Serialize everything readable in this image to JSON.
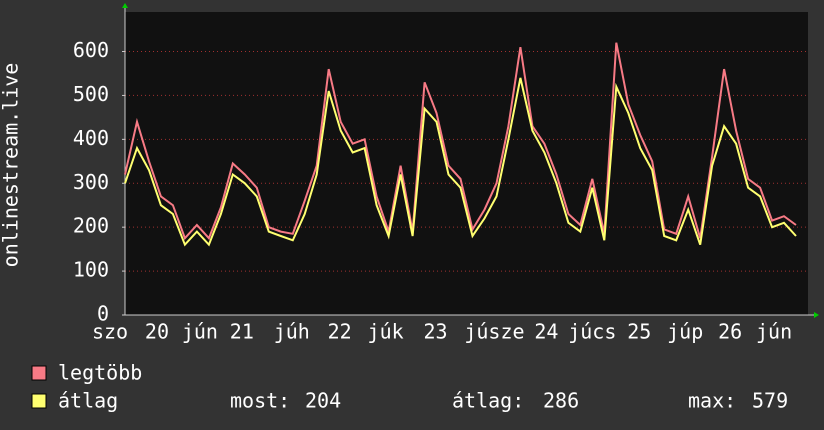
{
  "chart_data": {
    "type": "line",
    "y_label": "onlinestream.live",
    "x": [
      0,
      3,
      6,
      9,
      12,
      15,
      18,
      21,
      24,
      27,
      30,
      33,
      36,
      39,
      42,
      45,
      48,
      51,
      54,
      57,
      60,
      63,
      66,
      69,
      72,
      75,
      78,
      81,
      84,
      87,
      90,
      93,
      96,
      99,
      102,
      105,
      108,
      111,
      114,
      117,
      120,
      123,
      126,
      129,
      132,
      135,
      138,
      141,
      144,
      147,
      150,
      153,
      156,
      159,
      162,
      165,
      168
    ],
    "xlim": [
      0,
      171
    ],
    "xticks": [
      {
        "value": -3.75,
        "label": "szo"
      },
      {
        "value": 8,
        "label": "20"
      },
      {
        "value": 18.75,
        "label": "jún"
      },
      {
        "value": 29.25,
        "label": "21"
      },
      {
        "value": 41.75,
        "label": "júh"
      },
      {
        "value": 53.75,
        "label": "22"
      },
      {
        "value": 65.25,
        "label": "júk"
      },
      {
        "value": 77.75,
        "label": "23"
      },
      {
        "value": 92.5,
        "label": "júsze"
      },
      {
        "value": 105.5,
        "label": "24"
      },
      {
        "value": 117,
        "label": "júcs"
      },
      {
        "value": 128.75,
        "label": "25"
      },
      {
        "value": 140.25,
        "label": "júp"
      },
      {
        "value": 151.5,
        "label": "26"
      },
      {
        "value": 162.5,
        "label": "jún"
      }
    ],
    "ylim": [
      0,
      690
    ],
    "yticks": [
      0,
      100,
      200,
      300,
      400,
      500,
      600
    ],
    "grid": true,
    "series": [
      {
        "name": "legtöbb",
        "color": "#f77a85",
        "values": [
          320,
          440,
          350,
          270,
          250,
          175,
          205,
          175,
          245,
          345,
          320,
          290,
          200,
          190,
          185,
          260,
          340,
          560,
          440,
          390,
          400,
          270,
          190,
          340,
          190,
          530,
          460,
          340,
          310,
          195,
          240,
          300,
          430,
          610,
          430,
          390,
          320,
          230,
          205,
          310,
          185,
          620,
          480,
          410,
          350,
          195,
          185,
          270,
          175,
          360,
          560,
          420,
          310,
          290,
          215,
          225,
          205
        ]
      },
      {
        "name": "átlag",
        "color": "#ffff70",
        "values": [
          300,
          380,
          330,
          250,
          230,
          160,
          190,
          160,
          230,
          320,
          300,
          270,
          190,
          180,
          170,
          230,
          320,
          510,
          420,
          370,
          380,
          250,
          180,
          320,
          180,
          470,
          440,
          320,
          290,
          180,
          220,
          270,
          400,
          540,
          420,
          370,
          300,
          210,
          190,
          290,
          170,
          520,
          460,
          380,
          330,
          180,
          170,
          240,
          160,
          340,
          430,
          390,
          290,
          270,
          200,
          210,
          180
        ]
      }
    ],
    "stats": [
      {
        "label": "most:",
        "value": 204
      },
      {
        "label": "átlag:",
        "value": 286
      },
      {
        "label": "max:",
        "value": 579
      }
    ]
  }
}
